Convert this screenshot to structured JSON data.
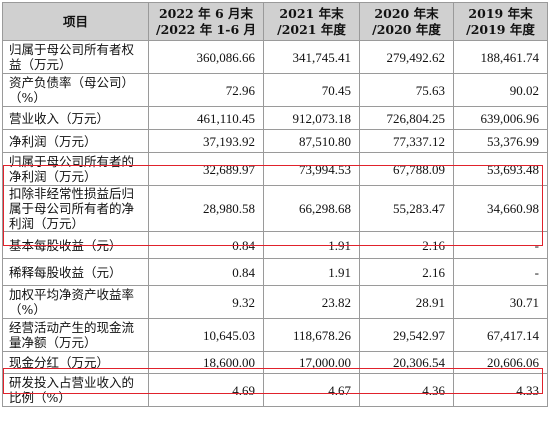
{
  "headers": [
    "项目",
    "2022 年 6 月末\n/2022 年 1-6 月",
    "2021 年末\n/2021 年度",
    "2020 年末\n/2020 年度",
    "2019 年末\n/2019 年度"
  ],
  "rows": [
    {
      "label": "归属于母公司所有者权益（万元）",
      "values": [
        "360,086.66",
        "341,745.41",
        "279,492.62",
        "188,461.74"
      ]
    },
    {
      "label": "资产负债率（母公司）（%）",
      "values": [
        "72.96",
        "70.45",
        "75.63",
        "90.02"
      ]
    },
    {
      "label": "营业收入（万元）",
      "values": [
        "461,110.45",
        "912,073.18",
        "726,804.25",
        "639,006.96"
      ]
    },
    {
      "label": "净利润（万元）",
      "values": [
        "37,193.92",
        "87,510.80",
        "77,337.12",
        "53,376.99"
      ]
    },
    {
      "label": "归属于母公司所有者的净利润（万元）",
      "values": [
        "32,689.97",
        "73,994.53",
        "67,788.09",
        "53,693.48"
      ]
    },
    {
      "label": "扣除非经常性损益后归属于母公司所有者的净利润（万元）",
      "values": [
        "28,980.58",
        "66,298.68",
        "55,283.47",
        "34,660.98"
      ]
    },
    {
      "label": "基本每股收益（元）",
      "values": [
        "0.84",
        "1.91",
        "2.16",
        "-"
      ]
    },
    {
      "label": "稀释每股收益（元）",
      "values": [
        "0.84",
        "1.91",
        "2.16",
        "-"
      ]
    },
    {
      "label": "加权平均净资产收益率（%）",
      "values": [
        "9.32",
        "23.82",
        "28.91",
        "30.71"
      ]
    },
    {
      "label": "经营活动产生的现金流量净额（万元）",
      "values": [
        "10,645.03",
        "118,678.26",
        "29,542.97",
        "67,417.14"
      ]
    },
    {
      "label": "现金分红（万元）",
      "values": [
        "18,600.00",
        "17,000.00",
        "20,306.54",
        "20,606.06"
      ]
    },
    {
      "label": "研发投入占营业收入的比例（%）",
      "values": [
        "4.69",
        "4.67",
        "4.36",
        "4.33"
      ]
    }
  ],
  "highlight_color": "#e0222c"
}
